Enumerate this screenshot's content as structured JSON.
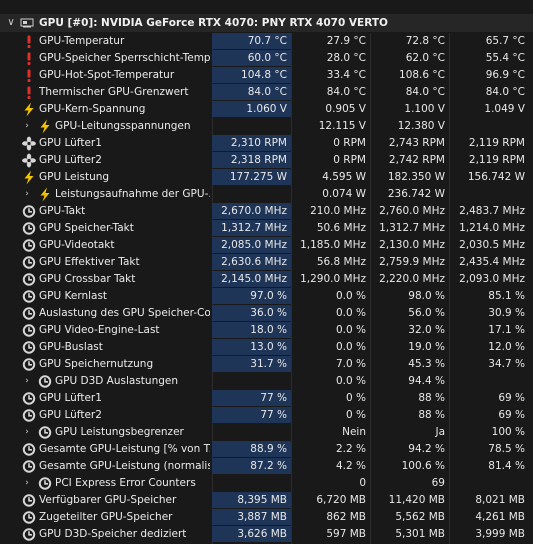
{
  "sensor_group": {
    "title": "GPU [#0]: NVIDIA GeForce RTX 4070: PNY RTX 4070 VERTO"
  },
  "rows": [
    {
      "icon": "warning-icon",
      "label": "GPU-Temperatur",
      "values": [
        "70.7 °C",
        "27.9 °C",
        "72.8 °C",
        "65.7 °C"
      ]
    },
    {
      "icon": "warning-icon",
      "label": "GPU-Speicher Sperrschicht-Temp...",
      "values": [
        "60.0 °C",
        "28.0 °C",
        "62.0 °C",
        "55.4 °C"
      ]
    },
    {
      "icon": "warning-icon",
      "label": "GPU-Hot-Spot-Temperatur",
      "values": [
        "104.8 °C",
        "33.4 °C",
        "108.6 °C",
        "96.9 °C"
      ]
    },
    {
      "icon": "warning-icon",
      "label": "Thermischer GPU-Grenzwert",
      "values": [
        "84.0 °C",
        "84.0 °C",
        "84.0 °C",
        "84.0 °C"
      ]
    },
    {
      "icon": "lightning-icon",
      "label": "GPU-Kern-Spannung",
      "values": [
        "1.060 V",
        "0.905 V",
        "1.100 V",
        "1.049 V"
      ]
    },
    {
      "icon": "lightning-icon",
      "label": "GPU-Leitungsspannungen",
      "sub": true,
      "values": [
        "",
        "12.115 V",
        "12.380 V",
        ""
      ]
    },
    {
      "icon": "fan-icon",
      "label": "GPU Lüfter1",
      "values": [
        "2,310 RPM",
        "0 RPM",
        "2,743 RPM",
        "2,119 RPM"
      ]
    },
    {
      "icon": "fan-icon",
      "label": "GPU Lüfter2",
      "values": [
        "2,318 RPM",
        "0 RPM",
        "2,742 RPM",
        "2,119 RPM"
      ]
    },
    {
      "icon": "lightning-icon",
      "label": "GPU Leistung",
      "values": [
        "177.275 W",
        "4.595 W",
        "182.350 W",
        "156.742 W"
      ]
    },
    {
      "icon": "lightning-icon",
      "label": "Leistungsaufnahme der GPU-...",
      "sub": true,
      "values": [
        "",
        "0.074 W",
        "236.742 W",
        ""
      ]
    },
    {
      "icon": "clock-icon",
      "label": "GPU-Takt",
      "values": [
        "2,670.0 MHz",
        "210.0 MHz",
        "2,760.0 MHz",
        "2,483.7 MHz"
      ]
    },
    {
      "icon": "clock-icon",
      "label": "GPU Speicher-Takt",
      "values": [
        "1,312.7 MHz",
        "50.6 MHz",
        "1,312.7 MHz",
        "1,214.0 MHz"
      ]
    },
    {
      "icon": "clock-icon",
      "label": "GPU-Videotakt",
      "values": [
        "2,085.0 MHz",
        "1,185.0 MHz",
        "2,130.0 MHz",
        "2,030.5 MHz"
      ]
    },
    {
      "icon": "clock-icon",
      "label": "GPU Effektiver Takt",
      "values": [
        "2,630.6 MHz",
        "56.8 MHz",
        "2,759.9 MHz",
        "2,435.4 MHz"
      ]
    },
    {
      "icon": "clock-icon",
      "label": "GPU Crossbar Takt",
      "values": [
        "2,145.0 MHz",
        "1,290.0 MHz",
        "2,220.0 MHz",
        "2,093.0 MHz"
      ]
    },
    {
      "icon": "clock-icon",
      "label": "GPU Kernlast",
      "values": [
        "97.0 %",
        "0.0 %",
        "98.0 %",
        "85.1 %"
      ]
    },
    {
      "icon": "clock-icon",
      "label": "Auslastung des GPU Speicher-Co...",
      "values": [
        "36.0 %",
        "0.0 %",
        "56.0 %",
        "30.9 %"
      ]
    },
    {
      "icon": "clock-icon",
      "label": "GPU Video-Engine-Last",
      "values": [
        "18.0 %",
        "0.0 %",
        "32.0 %",
        "17.1 %"
      ]
    },
    {
      "icon": "clock-icon",
      "label": "GPU-Buslast",
      "values": [
        "13.0 %",
        "0.0 %",
        "19.0 %",
        "12.0 %"
      ]
    },
    {
      "icon": "clock-icon",
      "label": "GPU Speichernutzung",
      "values": [
        "31.7 %",
        "7.0 %",
        "45.3 %",
        "34.7 %"
      ]
    },
    {
      "icon": "clock-icon",
      "label": "GPU D3D Auslastungen",
      "sub": true,
      "values": [
        "",
        "0.0 %",
        "94.4 %",
        ""
      ]
    },
    {
      "icon": "clock-icon",
      "label": "GPU Lüfter1",
      "values": [
        "77 %",
        "0 %",
        "88 %",
        "69 %"
      ]
    },
    {
      "icon": "clock-icon",
      "label": "GPU Lüfter2",
      "values": [
        "77 %",
        "0 %",
        "88 %",
        "69 %"
      ]
    },
    {
      "icon": "clock-icon",
      "label": "GPU Leistungsbegrenzer",
      "sub": true,
      "values": [
        "",
        "Nein",
        "Ja",
        "100 %"
      ]
    },
    {
      "icon": "clock-icon",
      "label": "Gesamte GPU-Leistung [% von T...",
      "values": [
        "88.9 %",
        "2.2 %",
        "94.2 %",
        "78.5 %"
      ]
    },
    {
      "icon": "clock-icon",
      "label": "Gesamte GPU-Leistung (normalisi...",
      "values": [
        "87.2 %",
        "4.2 %",
        "100.6 %",
        "81.4 %"
      ]
    },
    {
      "icon": "clock-icon",
      "label": "PCI Express Error Counters",
      "sub": true,
      "values": [
        "",
        "0",
        "69",
        ""
      ]
    },
    {
      "icon": "clock-icon",
      "label": "Verfügbarer GPU-Speicher",
      "values": [
        "8,395 MB",
        "6,720 MB",
        "11,420 MB",
        "8,021 MB"
      ]
    },
    {
      "icon": "clock-icon",
      "label": "Zugeteilter GPU-Speicher",
      "values": [
        "3,887 MB",
        "862 MB",
        "5,562 MB",
        "4,261 MB"
      ]
    },
    {
      "icon": "clock-icon",
      "label": "GPU D3D-Speicher dediziert",
      "values": [
        "3,626 MB",
        "597 MB",
        "5,301 MB",
        "3,999 MB"
      ]
    }
  ],
  "colors": {
    "warning": "#e0302a",
    "lightning": "#f5c400",
    "icon_gray": "#d6d6d6",
    "current_bg": "#1e3557"
  }
}
